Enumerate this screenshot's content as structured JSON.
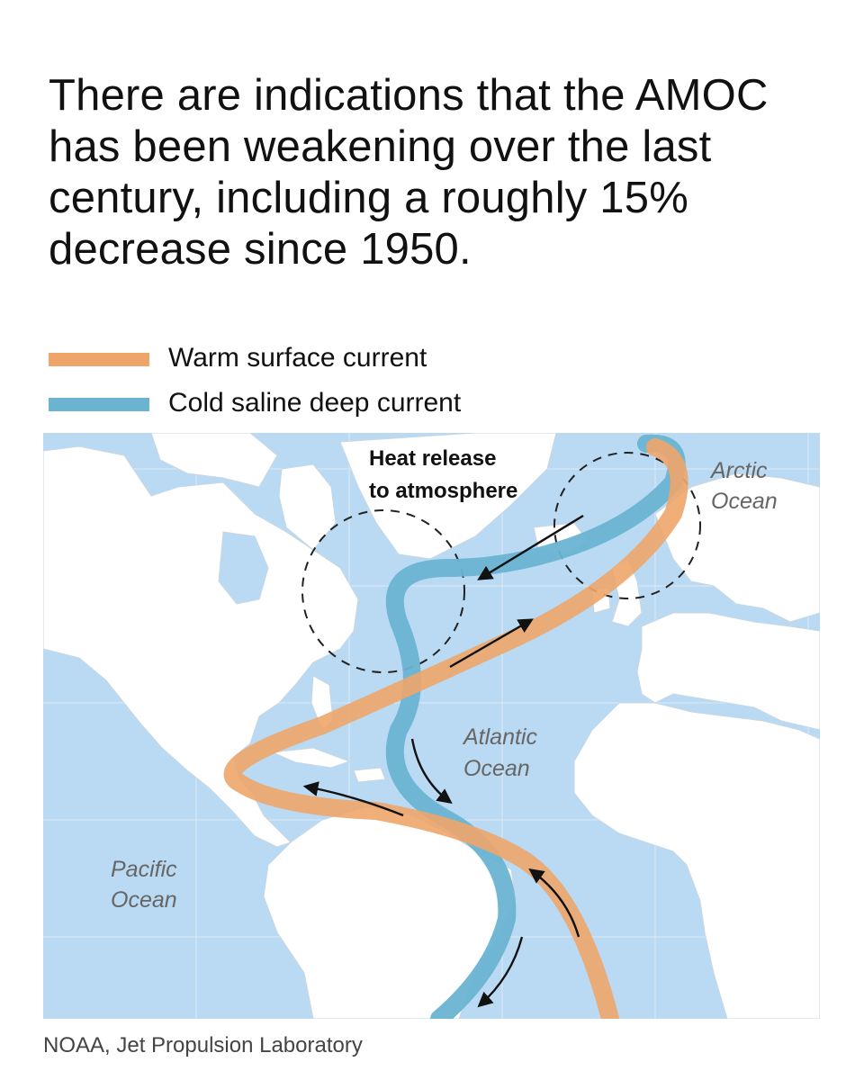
{
  "headline": "There are indications that the AMOC has been weakening over the last century, including a roughly 15% decrease since 1950.",
  "legend": [
    {
      "label": "Warm surface current",
      "color": "#eea56a"
    },
    {
      "label": "Cold saline deep current",
      "color": "#6ab4d2"
    }
  ],
  "map": {
    "labels": {
      "heat_release_line1": "Heat release",
      "heat_release_line2": "to atmosphere",
      "arctic_line1": "Arctic",
      "arctic_line2": "Ocean",
      "atlantic_line1": "Atlantic",
      "atlantic_line2": "Ocean",
      "pacific_line1": "Pacific",
      "pacific_line2": "Ocean"
    },
    "colors": {
      "ocean": "#b9daf2",
      "land": "#ffffff",
      "warm": "#eea56a",
      "cold": "#6ab4d2",
      "arrow": "#111111"
    }
  },
  "source": "NOAA, Jet Propulsion Laboratory"
}
